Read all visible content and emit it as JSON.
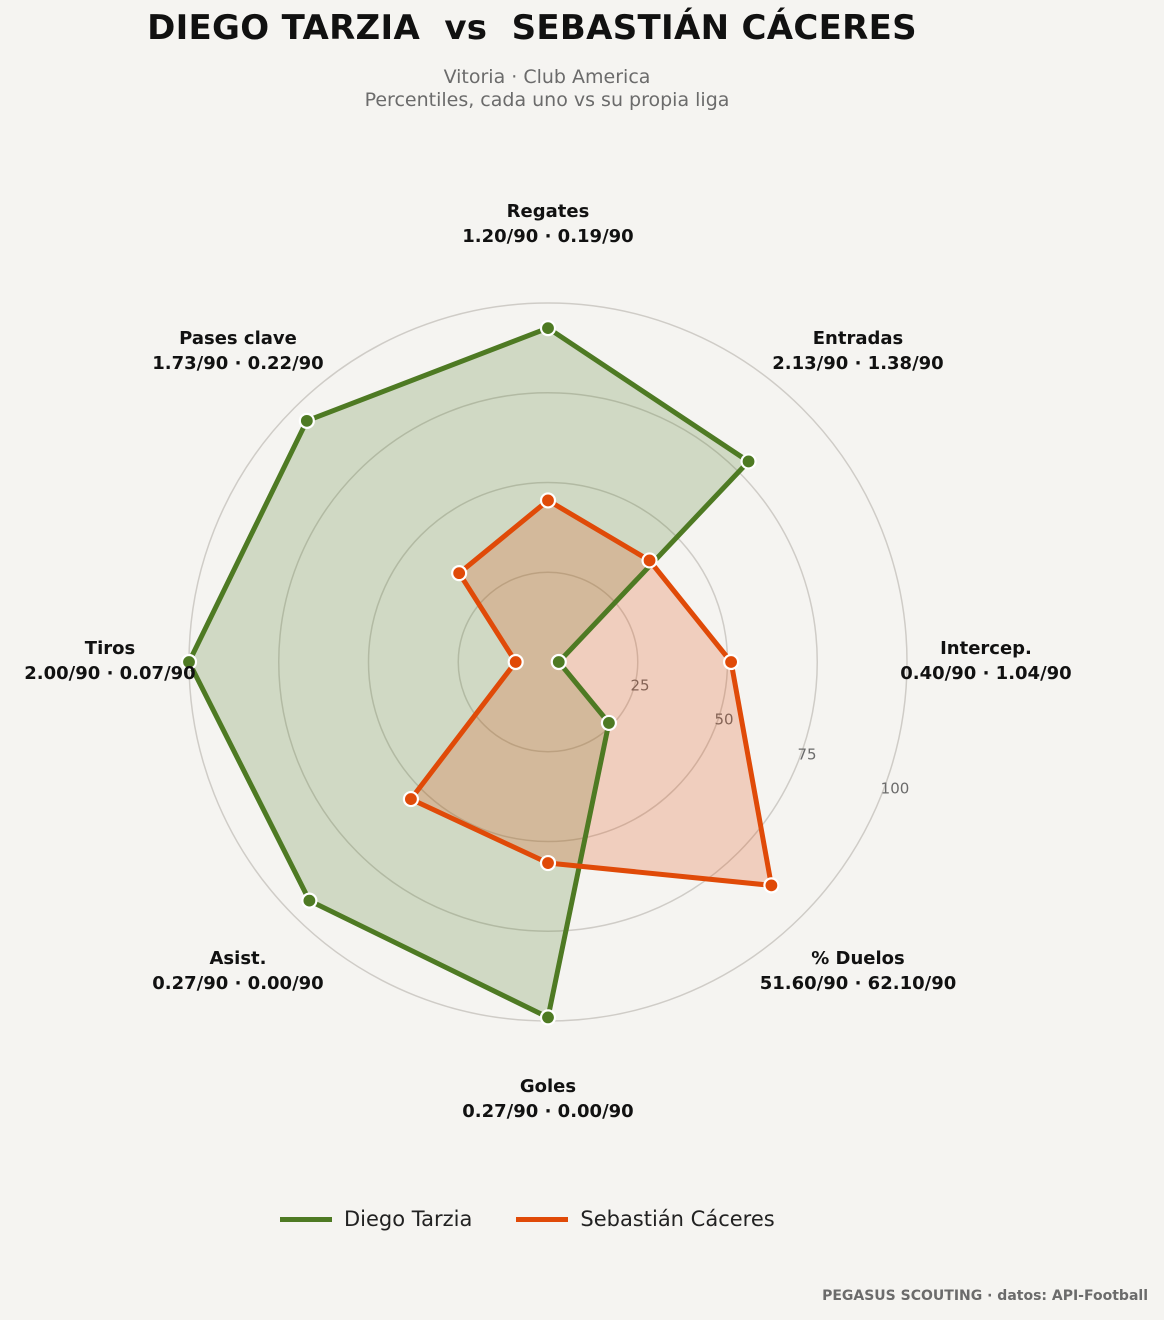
{
  "title": "DIEGO TARZIA  vs  SEBASTIÁN CÁCERES",
  "subtitle_line1": "Vitoria · Club America",
  "subtitle_line2": "Percentiles, cada uno vs su propia liga",
  "footer": "PEGASUS SCOUTING · datos: API-Football",
  "colors": {
    "background": "#f5f4f1",
    "player1": "#4e7a23",
    "player2": "#e04a08",
    "grid": "#cfccc7"
  },
  "chart_data": {
    "type": "radar",
    "categories": [
      "Regates",
      "Entradas",
      "Intercep.",
      "% Duelos",
      "Goles",
      "Asist.",
      "Tiros",
      "Pases clave"
    ],
    "category_values": [
      "1.20/90 · 0.19/90",
      "2.13/90 · 1.38/90",
      "0.40/90 · 1.04/90",
      "51.60/90 · 62.10/90",
      "0.27/90 · 0.00/90",
      "0.27/90 · 0.00/90",
      "2.00/90 · 0.07/90",
      "1.73/90 · 0.22/90"
    ],
    "rlim": [
      0,
      100
    ],
    "rticks": [
      25,
      50,
      75,
      100
    ],
    "series": [
      {
        "name": "Diego Tarzia",
        "color": "#4e7a23",
        "values": [
          93,
          79,
          3,
          24,
          99,
          94,
          100,
          95
        ]
      },
      {
        "name": "Sebastián Cáceres",
        "color": "#e04a08",
        "values": [
          45,
          40,
          51,
          88,
          56,
          54,
          9,
          35
        ]
      }
    ],
    "legend_position": "bottom-center",
    "grid": true
  }
}
